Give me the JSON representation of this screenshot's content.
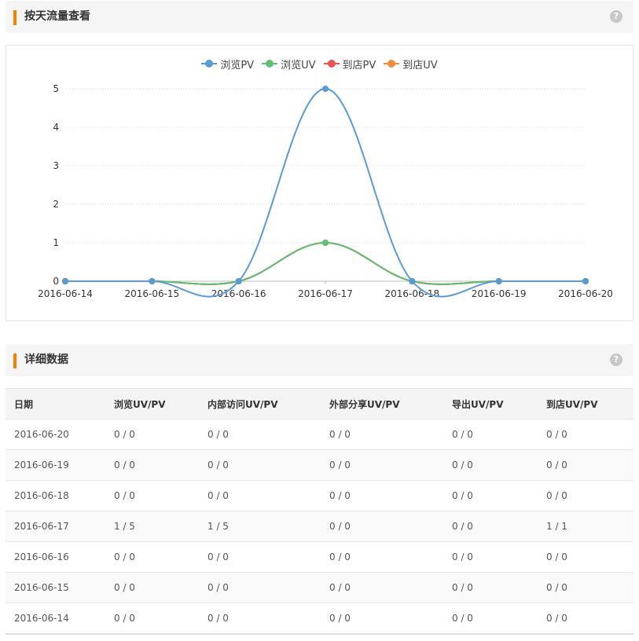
{
  "colors": {
    "accent": "#f08200",
    "pv_browse": "#5b9bd5",
    "uv_browse": "#5fbf74",
    "pv_store": "#e85454",
    "uv_store": "#f28c3c"
  },
  "section1": {
    "title": "按天流量查看",
    "help": "?"
  },
  "section2": {
    "title": "详细数据",
    "help": "?"
  },
  "chart_data": {
    "type": "line",
    "smooth": true,
    "categories": [
      "2016-06-14",
      "2016-06-15",
      "2016-06-16",
      "2016-06-17",
      "2016-06-18",
      "2016-06-19",
      "2016-06-20"
    ],
    "series": [
      {
        "name": "浏览PV",
        "color": "#5b9bd5",
        "values": [
          0,
          0,
          0,
          5,
          0,
          0,
          0
        ]
      },
      {
        "name": "浏览UV",
        "color": "#5fbf74",
        "values": [
          0,
          0,
          0,
          1,
          0,
          0,
          0
        ]
      },
      {
        "name": "到店PV",
        "color": "#e85454",
        "values": [
          0,
          0,
          0,
          1,
          0,
          0,
          0
        ]
      },
      {
        "name": "到店UV",
        "color": "#f28c3c",
        "values": [
          0,
          0,
          0,
          1,
          0,
          0,
          0
        ]
      }
    ],
    "ylim": [
      0,
      5
    ],
    "yticks": [
      0,
      1,
      2,
      3,
      4,
      5
    ],
    "grid": true,
    "legend": "top-center"
  },
  "table": {
    "headers": [
      "日期",
      "浏览UV/PV",
      "内部访问UV/PV",
      "外部分享UV/PV",
      "导出UV/PV",
      "到店UV/PV"
    ],
    "rows": [
      [
        "2016-06-20",
        "0 / 0",
        "0 / 0",
        "0 / 0",
        "0 / 0",
        "0 / 0"
      ],
      [
        "2016-06-19",
        "0 / 0",
        "0 / 0",
        "0 / 0",
        "0 / 0",
        "0 / 0"
      ],
      [
        "2016-06-18",
        "0 / 0",
        "0 / 0",
        "0 / 0",
        "0 / 0",
        "0 / 0"
      ],
      [
        "2016-06-17",
        "1 / 5",
        "1 / 5",
        "0 / 0",
        "0 / 0",
        "1 / 1"
      ],
      [
        "2016-06-16",
        "0 / 0",
        "0 / 0",
        "0 / 0",
        "0 / 0",
        "0 / 0"
      ],
      [
        "2016-06-15",
        "0 / 0",
        "0 / 0",
        "0 / 0",
        "0 / 0",
        "0 / 0"
      ],
      [
        "2016-06-14",
        "0 / 0",
        "0 / 0",
        "0 / 0",
        "0 / 0",
        "0 / 0"
      ]
    ]
  }
}
